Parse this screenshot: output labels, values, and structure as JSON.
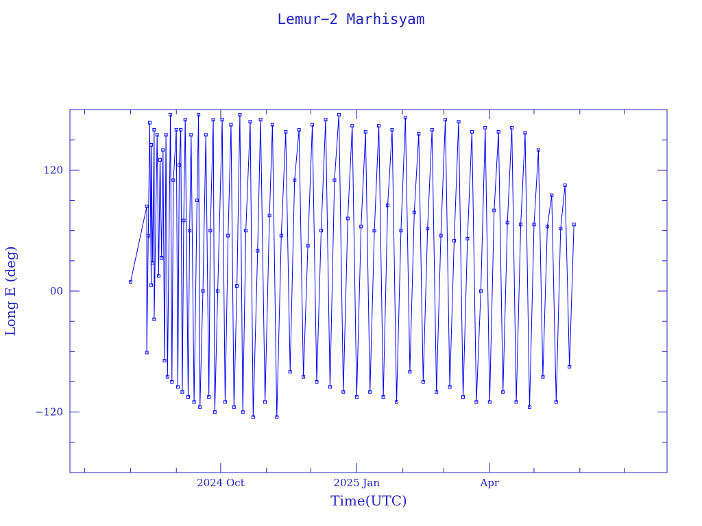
{
  "chart_data": {
    "type": "line",
    "title": "Lemur−2 Marhisyam",
    "xlabel": "Time(UTC)",
    "ylabel": "Long E (deg)",
    "x_range": [
      "2024-06-21",
      "2025-07-30"
    ],
    "ylim": [
      -180,
      180
    ],
    "y_ticks": [
      -120,
      0,
      120
    ],
    "y_tick_labels": [
      "−120",
      "00",
      "120"
    ],
    "x_tick_labels": [
      {
        "date": "2024-10-01",
        "label": "2024 Oct"
      },
      {
        "date": "2025-01-01",
        "label": "2025 Jan"
      },
      {
        "date": "2025-04-01",
        "label": "Apr"
      }
    ],
    "grid": false,
    "line_color": "#0000ff",
    "frame_color": "#2020c0",
    "series": [
      {
        "name": "",
        "x": [
          "2024-08-01",
          "2024-08-12",
          "2024-08-12",
          "2024-08-13",
          "2024-08-14",
          "2024-08-15",
          "2024-08-15",
          "2024-08-16",
          "2024-08-17",
          "2024-08-17",
          "2024-08-19",
          "2024-08-20",
          "2024-08-21",
          "2024-08-22",
          "2024-08-23",
          "2024-08-24",
          "2024-08-25",
          "2024-08-26",
          "2024-08-28",
          "2024-08-29",
          "2024-08-30",
          "2024-09-01",
          "2024-09-02",
          "2024-09-03",
          "2024-09-04",
          "2024-09-05",
          "2024-09-06",
          "2024-09-07",
          "2024-09-09",
          "2024-09-10",
          "2024-09-11",
          "2024-09-13",
          "2024-09-15",
          "2024-09-16",
          "2024-09-17",
          "2024-09-19",
          "2024-09-21",
          "2024-09-23",
          "2024-09-24",
          "2024-09-26",
          "2024-09-27",
          "2024-09-29",
          "2024-10-02",
          "2024-10-04",
          "2024-10-06",
          "2024-10-08",
          "2024-10-10",
          "2024-10-12",
          "2024-10-14",
          "2024-10-16",
          "2024-10-18",
          "2024-10-21",
          "2024-10-23",
          "2024-10-26",
          "2024-10-28",
          "2024-10-31",
          "2024-11-03",
          "2024-11-05",
          "2024-11-08",
          "2024-11-11",
          "2024-11-14",
          "2024-11-17",
          "2024-11-20",
          "2024-11-23",
          "2024-11-26",
          "2024-11-29",
          "2024-12-02",
          "2024-12-05",
          "2024-12-08",
          "2024-12-11",
          "2024-12-14",
          "2024-12-17",
          "2024-12-20",
          "2024-12-23",
          "2024-12-26",
          "2024-12-29",
          "2025-01-01",
          "2025-01-04",
          "2025-01-07",
          "2025-01-10",
          "2025-01-13",
          "2025-01-16",
          "2025-01-19",
          "2025-01-22",
          "2025-01-25",
          "2025-01-28",
          "2025-01-31",
          "2025-02-03",
          "2025-02-06",
          "2025-02-09",
          "2025-02-12",
          "2025-02-15",
          "2025-02-18",
          "2025-02-21",
          "2025-02-24",
          "2025-02-27",
          "2025-03-02",
          "2025-03-05",
          "2025-03-08",
          "2025-03-11",
          "2025-03-14",
          "2025-03-17",
          "2025-03-20",
          "2025-03-23",
          "2025-03-26",
          "2025-03-29",
          "2025-04-01",
          "2025-04-04",
          "2025-04-07",
          "2025-04-10",
          "2025-04-13",
          "2025-04-16",
          "2025-04-19",
          "2025-04-22",
          "2025-04-25",
          "2025-04-28",
          "2025-05-01",
          "2025-05-04",
          "2025-05-07",
          "2025-05-10",
          "2025-05-13",
          "2025-05-16",
          "2025-05-19",
          "2025-05-22",
          "2025-05-25",
          "2025-05-28"
        ],
        "y": [
          9,
          84,
          -61,
          55,
          167,
          6,
          145,
          28,
          160,
          -28,
          155,
          15,
          130,
          33,
          140,
          -69,
          155,
          -85,
          175,
          -90,
          110,
          160,
          -95,
          125,
          160,
          -100,
          70,
          170,
          -105,
          60,
          155,
          -110,
          90,
          175,
          -115,
          0,
          155,
          -105,
          60,
          170,
          -120,
          0,
          170,
          -110,
          55,
          165,
          -115,
          5,
          175,
          -120,
          60,
          168,
          -125,
          40,
          170,
          -110,
          75,
          165,
          -125,
          55,
          158,
          -80,
          110,
          160,
          -85,
          45,
          165,
          -90,
          60,
          170,
          -95,
          110,
          175,
          -100,
          72,
          164,
          -105,
          64,
          158,
          -100,
          60,
          164,
          -105,
          85,
          160,
          -110,
          60,
          172,
          -80,
          78,
          156,
          -90,
          62,
          160,
          -100,
          55,
          170,
          -95,
          50,
          168,
          -105,
          52,
          158,
          -110,
          0,
          162,
          -110,
          80,
          158,
          -100,
          68,
          162,
          -110,
          66,
          157,
          -115,
          66,
          140,
          -85,
          64,
          95,
          -110,
          62,
          105,
          -75,
          66
        ]
      }
    ]
  }
}
